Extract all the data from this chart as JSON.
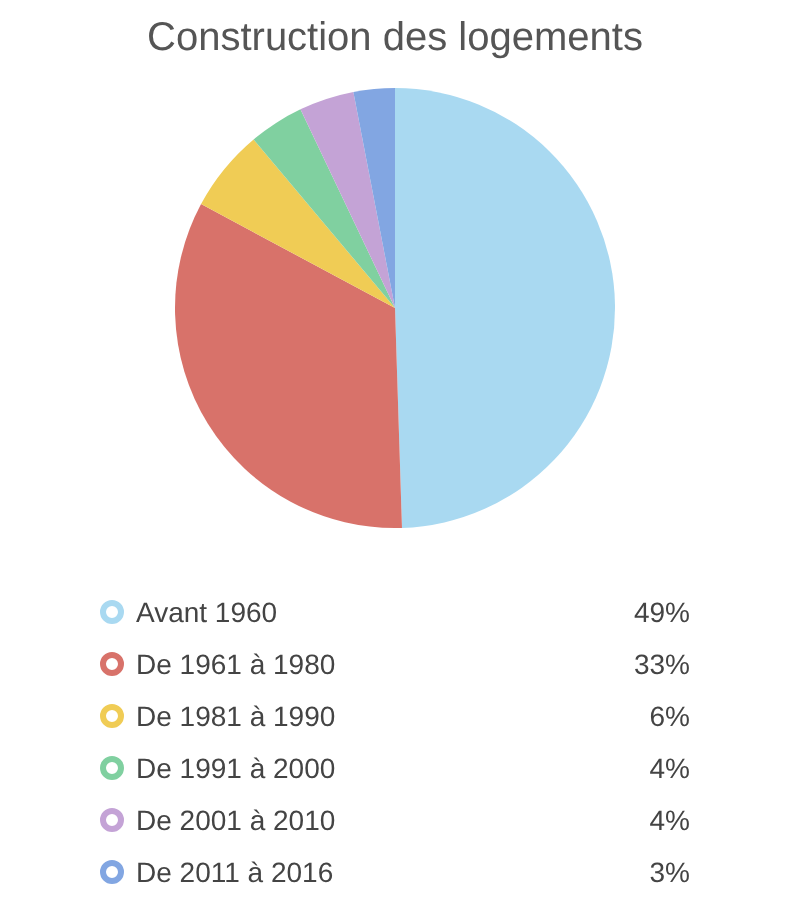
{
  "chart_data": {
    "type": "pie",
    "title": "Construction des logements",
    "categories": [
      "Avant 1960",
      "De 1961 à 1980",
      "De 1981 à 1990",
      "De 1991 à 2000",
      "De 2001 à 2010",
      "De 2011 à 2016"
    ],
    "values": [
      49,
      33,
      6,
      4,
      4,
      3
    ],
    "value_labels": [
      "49%",
      "33%",
      "6%",
      "4%",
      "4%",
      "3%"
    ],
    "colors": [
      "#a9d9f1",
      "#d8726a",
      "#f0cc55",
      "#80d0a0",
      "#c4a3d6",
      "#82a6e2"
    ],
    "legend": "bottom"
  }
}
